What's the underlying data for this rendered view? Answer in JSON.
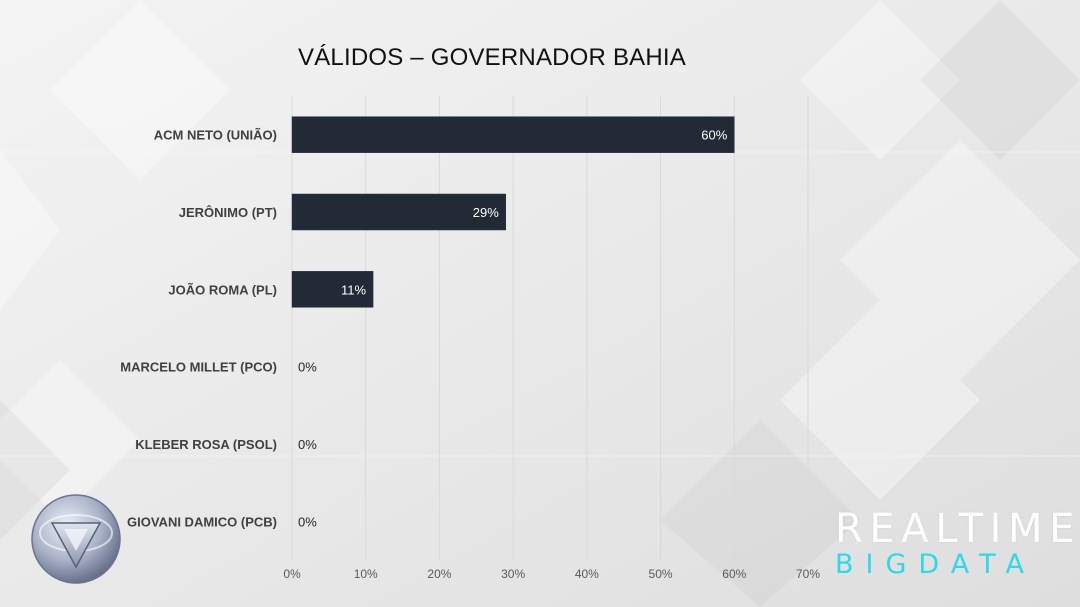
{
  "title": "VÁLIDOS – GOVERNADOR BAHIA",
  "brand": {
    "line1": "REALTIME",
    "line2": "BIGDATA"
  },
  "colors": {
    "bar": "#222a35",
    "brand_accent": "#2fd8e8",
    "gridline": "#d9d9d9"
  },
  "chart_data": {
    "type": "bar",
    "orientation": "horizontal",
    "title": "VÁLIDOS – GOVERNADOR BAHIA",
    "categories": [
      "ACM NETO (UNIÃO)",
      "JERÔNIMO (PT)",
      "JOÃO ROMA (PL)",
      "MARCELO MILLET (PCO)",
      "KLEBER ROSA (PSOL)",
      "GIOVANI DAMICO (PCB)"
    ],
    "values": [
      60,
      29,
      11,
      0,
      0,
      0
    ],
    "value_labels": [
      "60%",
      "29%",
      "11%",
      "0%",
      "0%",
      "0%"
    ],
    "xlim": [
      0,
      70
    ],
    "xticks": [
      "0%",
      "10%",
      "20%",
      "30%",
      "40%",
      "50%",
      "60%",
      "70%"
    ],
    "grid": true,
    "legend": "none"
  }
}
